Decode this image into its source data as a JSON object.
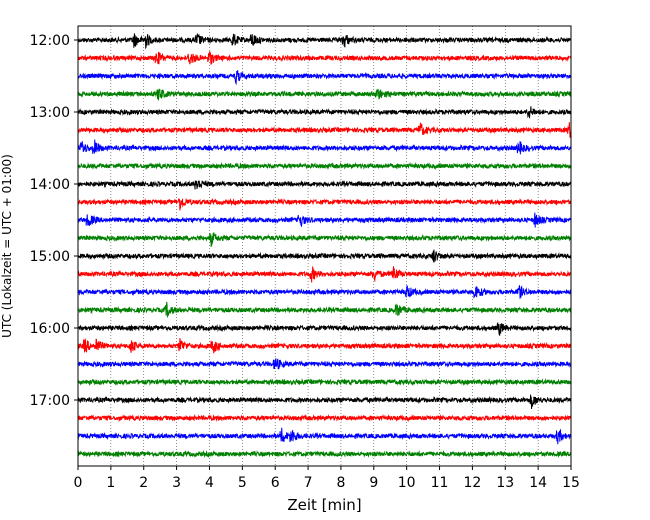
{
  "chart_data": {
    "type": "line",
    "chart_kind": "helicorder",
    "title": "",
    "xlabel": "Zeit  [min]",
    "ylabel": "UTC (Lokalzeit = UTC + 01:00)",
    "xlim": [
      0,
      15
    ],
    "x_ticks": [
      0,
      1,
      2,
      3,
      4,
      5,
      6,
      7,
      8,
      9,
      10,
      11,
      12,
      13,
      14,
      15
    ],
    "x_tick_labels": [
      "0",
      "1",
      "2",
      "3",
      "4",
      "5",
      "6",
      "7",
      "8",
      "9",
      "10",
      "11",
      "12",
      "13",
      "14",
      "15"
    ],
    "vertical_grid": "dotted, every 1 min",
    "y_tick_labels": [
      "12:00",
      "13:00",
      "14:00",
      "15:00",
      "16:00",
      "17:00"
    ],
    "line_interval_min": 15,
    "color_cycle": [
      "#000000",
      "#ff0000",
      "#0000ff",
      "#008000"
    ],
    "traces": [
      {
        "start": "12:00",
        "events": [
          1.7,
          2.05,
          3.6,
          4.7,
          5.3,
          8.1
        ]
      },
      {
        "start": "12:15",
        "events": [
          2.4,
          3.4,
          4.0
        ]
      },
      {
        "start": "12:30",
        "events": [
          4.8
        ]
      },
      {
        "start": "12:45",
        "events": [
          2.45,
          9.1
        ]
      },
      {
        "start": "13:00",
        "events": [
          13.7
        ]
      },
      {
        "start": "13:15",
        "events": [
          10.4,
          14.95
        ]
      },
      {
        "start": "13:30",
        "events": [
          0.1,
          0.5,
          13.4
        ]
      },
      {
        "start": "13:45",
        "events": []
      },
      {
        "start": "14:00",
        "events": [
          3.6
        ]
      },
      {
        "start": "14:15",
        "events": [
          3.1
        ]
      },
      {
        "start": "14:30",
        "events": [
          0.3,
          6.75,
          13.9
        ]
      },
      {
        "start": "14:45",
        "events": [
          4.05
        ]
      },
      {
        "start": "15:00",
        "events": [
          10.8
        ]
      },
      {
        "start": "15:15",
        "events": [
          7.1,
          9.0,
          9.6
        ]
      },
      {
        "start": "15:30",
        "events": [
          10.0,
          12.1,
          13.4
        ]
      },
      {
        "start": "15:45",
        "events": [
          2.7,
          9.7
        ]
      },
      {
        "start": "16:00",
        "events": [
          12.8
        ]
      },
      {
        "start": "16:15",
        "events": [
          0.2,
          0.55,
          1.6,
          3.1,
          4.1
        ]
      },
      {
        "start": "16:30",
        "events": [
          6.0
        ]
      },
      {
        "start": "16:45",
        "events": []
      },
      {
        "start": "17:00",
        "events": [
          13.8
        ]
      },
      {
        "start": "17:15",
        "events": []
      },
      {
        "start": "17:30",
        "events": [
          6.2,
          6.5,
          14.6
        ]
      },
      {
        "start": "17:45",
        "events": []
      }
    ]
  }
}
